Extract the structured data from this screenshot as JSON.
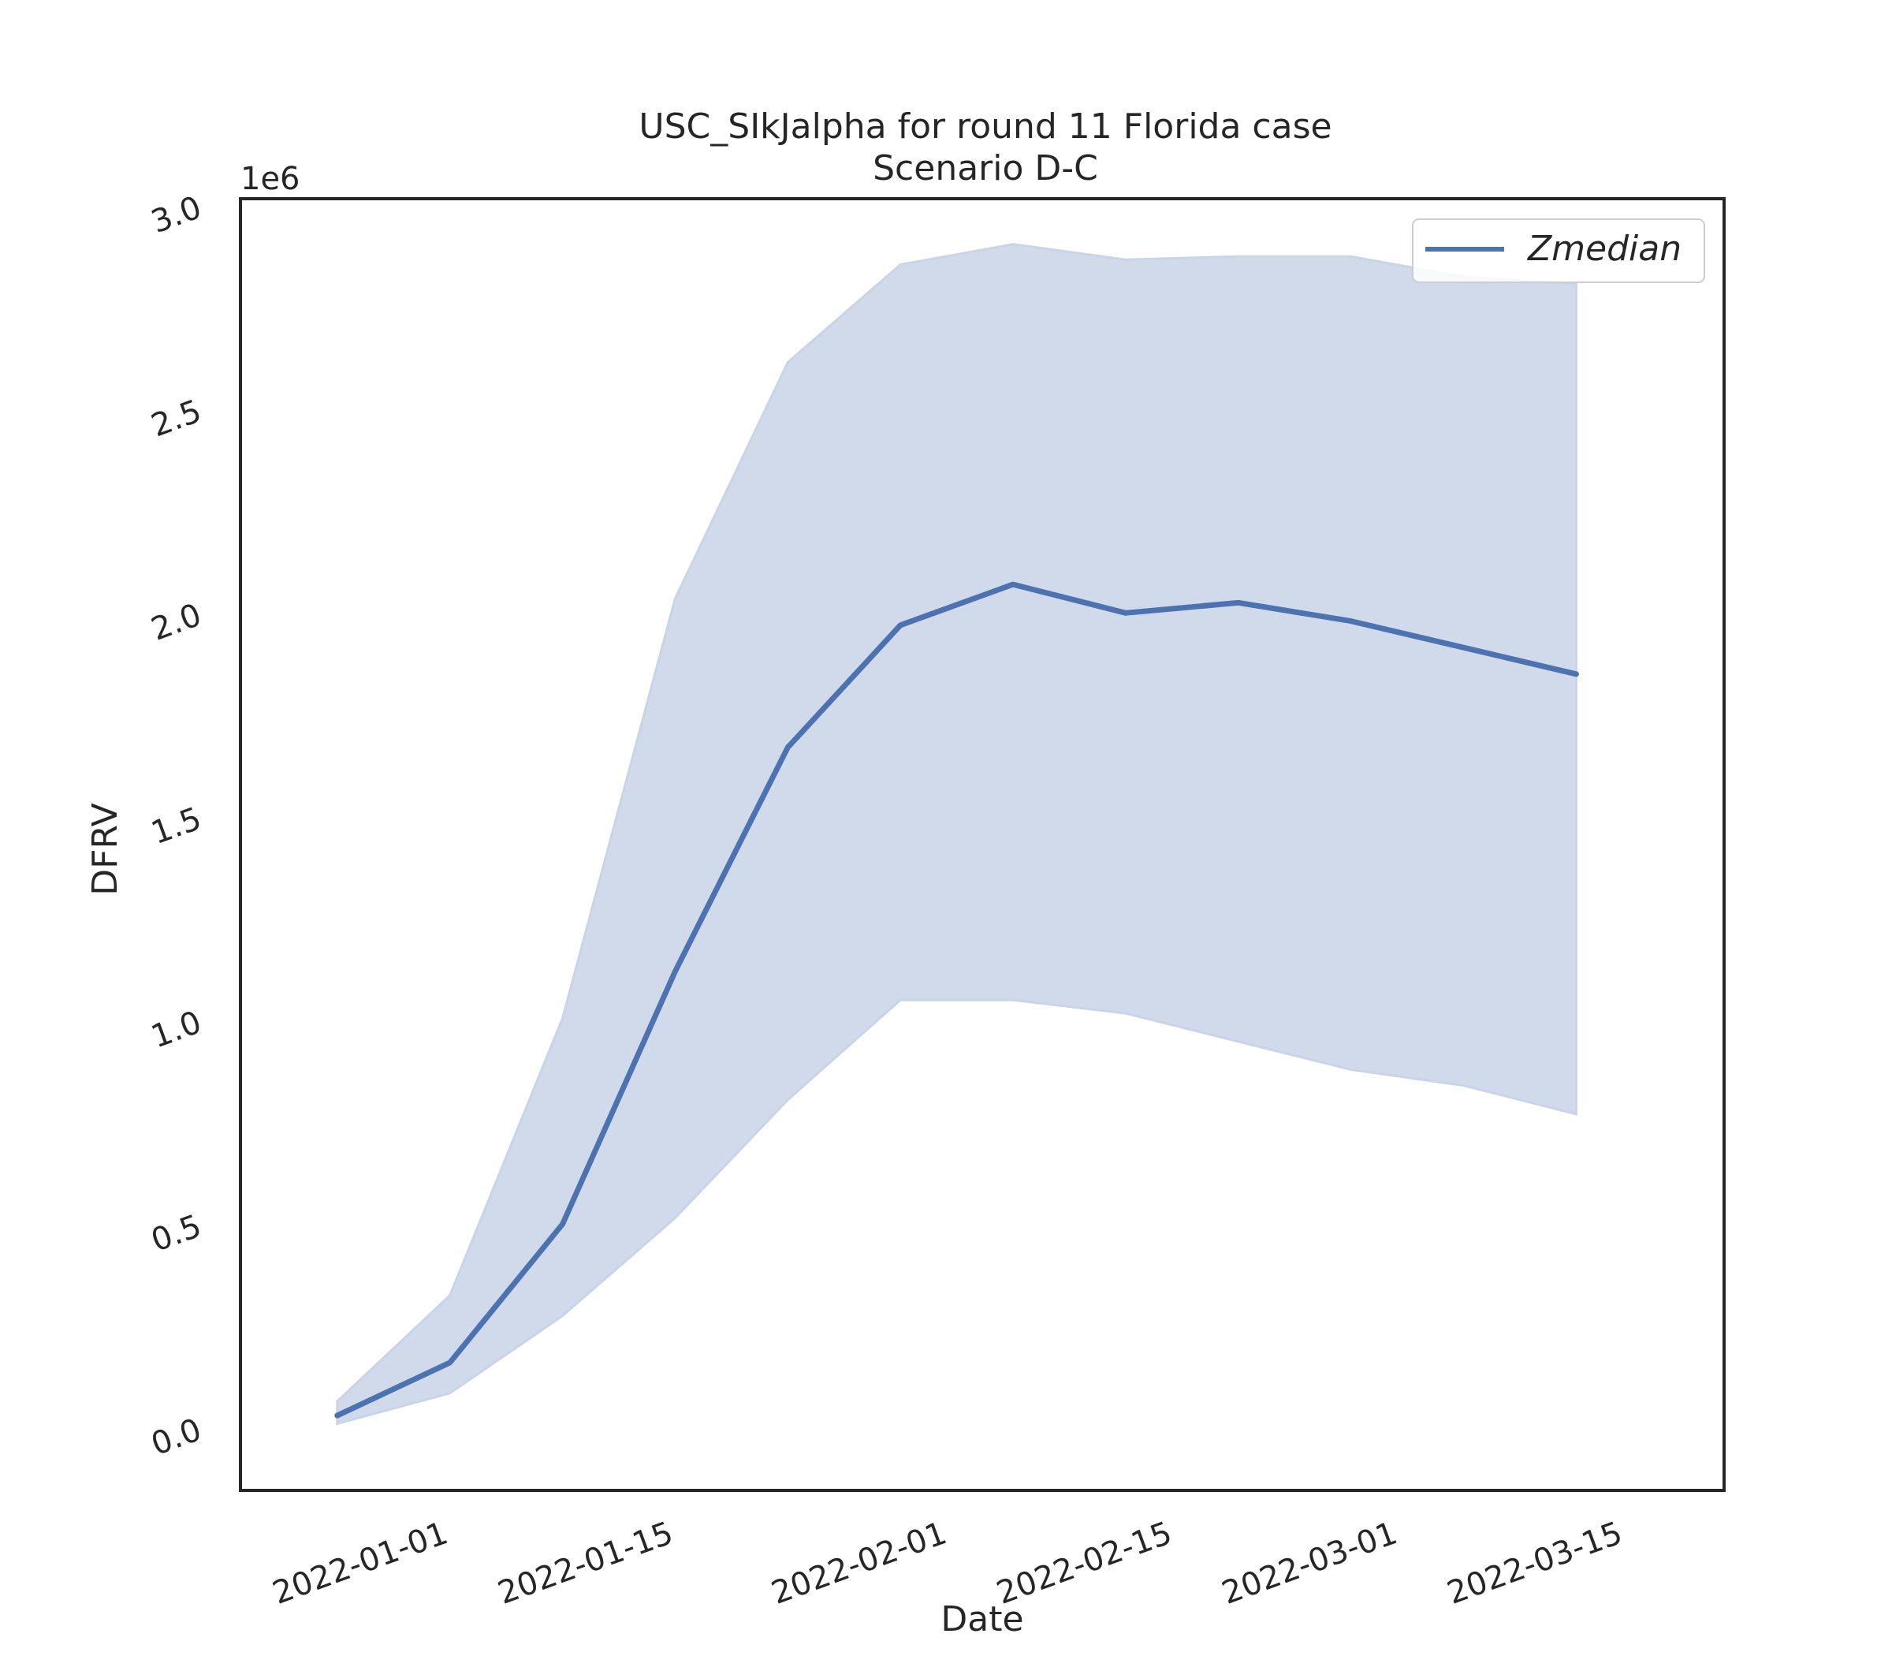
{
  "chart_data": {
    "type": "line",
    "title": "USC_SIkJalpha for round 11 Florida case",
    "subtitle": "Scenario D-C",
    "xlabel": "Date",
    "ylabel": "DFRV",
    "y_offset_label": "1e6",
    "y_scale": 1000000,
    "xlim": [
      "2021-12-23",
      "2022-03-15"
    ],
    "ylim": [
      -100000,
      3000000
    ],
    "x_ticks": [
      "2022-01-01",
      "2022-01-15",
      "2022-02-01",
      "2022-02-15",
      "2022-03-01",
      "2022-03-15"
    ],
    "y_ticks": [
      0,
      500000,
      1000000,
      1500000,
      2000000,
      2500000,
      3000000
    ],
    "y_tick_labels": [
      "0.0",
      "0.5",
      "1.0",
      "1.5",
      "2.0",
      "2.5",
      "3.0"
    ],
    "grid": false,
    "legend_position": "top-right",
    "x": [
      "2021-12-25",
      "2022-01-01",
      "2022-01-08",
      "2022-01-15",
      "2022-01-22",
      "2022-01-29",
      "2022-02-05",
      "2022-02-12",
      "2022-02-19",
      "2022-02-26",
      "2022-03-05",
      "2022-03-12"
    ],
    "series": [
      {
        "name": "Zmedian",
        "color": "#4c72b0",
        "values": [
          25000,
          155000,
          495000,
          1115000,
          1665000,
          1965000,
          2065000,
          1995000,
          2020000,
          1975000,
          1910000,
          1845000
        ],
        "band_upper": [
          60000,
          320000,
          1000000,
          2030000,
          2610000,
          2850000,
          2900000,
          2862000,
          2870000,
          2870000,
          2820000,
          2803000
        ],
        "band_lower": [
          5000,
          80000,
          270000,
          510000,
          800000,
          1045000,
          1045000,
          1012000,
          943000,
          874000,
          835000,
          765000
        ],
        "band_color": "#c9d4e8"
      }
    ]
  }
}
